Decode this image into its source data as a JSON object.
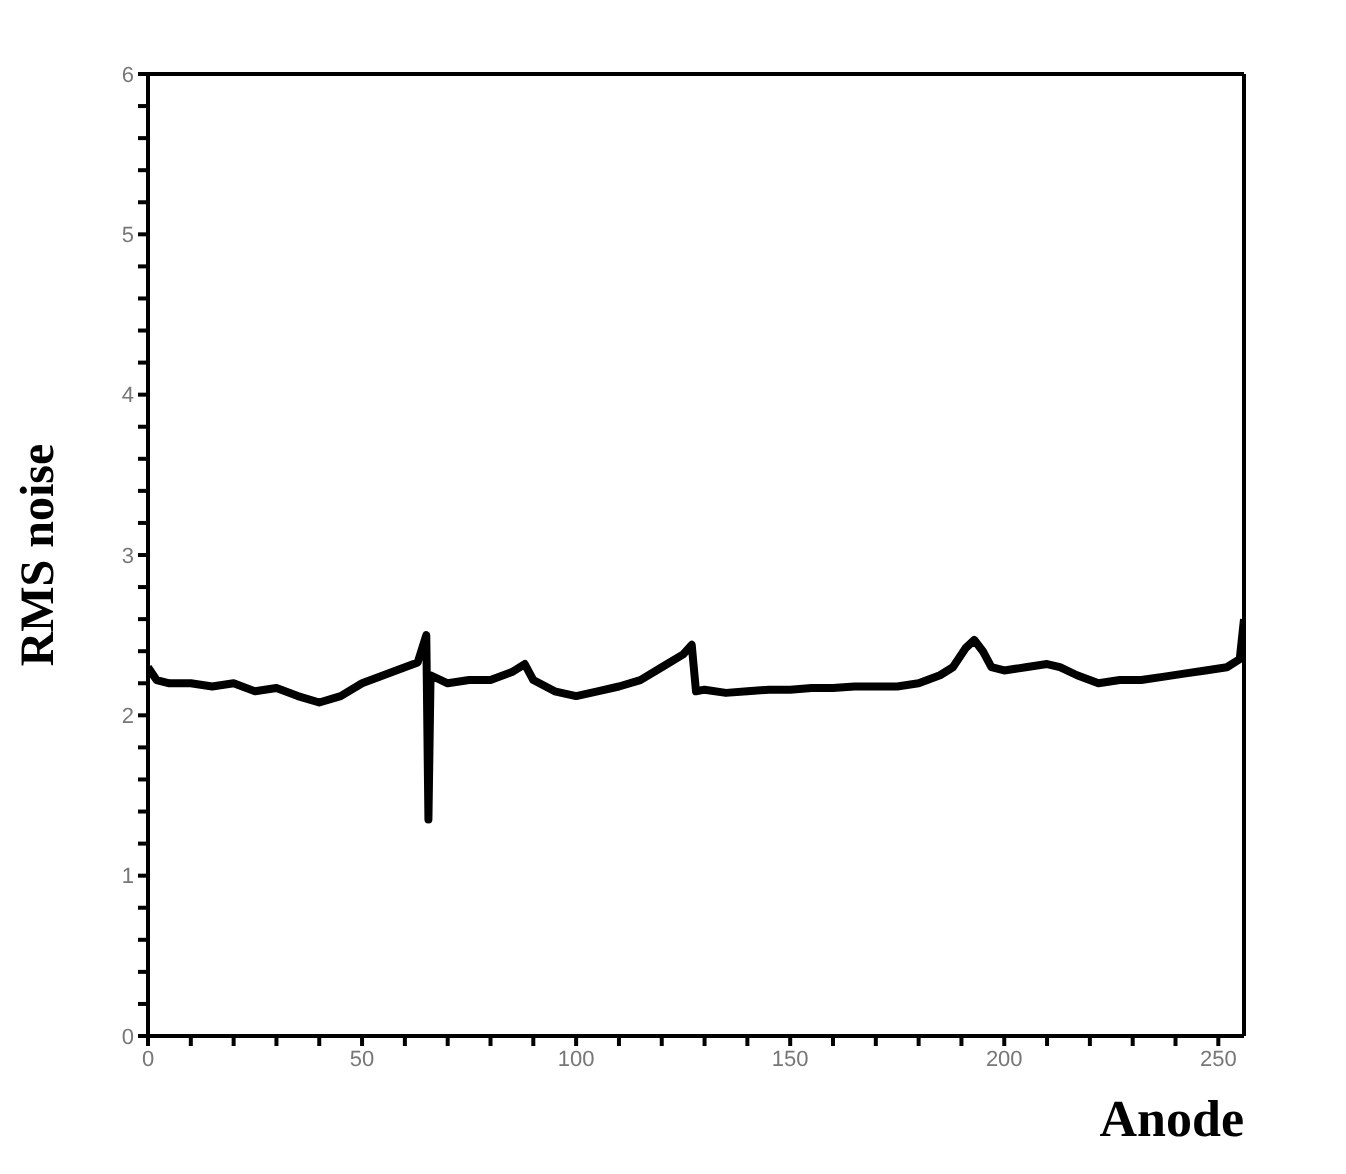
{
  "chart_data": {
    "type": "line",
    "xlabel": "Anode",
    "ylabel": "RMS noise",
    "x": [
      0,
      2,
      5,
      10,
      15,
      20,
      25,
      30,
      35,
      40,
      45,
      50,
      55,
      60,
      63,
      65,
      65.5,
      66,
      70,
      75,
      80,
      85,
      88,
      90,
      95,
      100,
      105,
      110,
      115,
      120,
      125,
      127,
      128,
      130,
      135,
      140,
      145,
      150,
      155,
      160,
      165,
      170,
      175,
      180,
      185,
      188,
      191,
      193,
      195,
      197,
      200,
      205,
      210,
      213,
      217,
      222,
      227,
      232,
      237,
      242,
      247,
      252,
      255,
      256
    ],
    "series": [
      {
        "color": "#000000",
        "values": [
          2.3,
          2.22,
          2.2,
          2.2,
          2.18,
          2.2,
          2.15,
          2.17,
          2.12,
          2.08,
          2.12,
          2.2,
          2.25,
          2.3,
          2.33,
          2.5,
          1.35,
          2.25,
          2.2,
          2.22,
          2.22,
          2.27,
          2.32,
          2.22,
          2.15,
          2.12,
          2.15,
          2.18,
          2.22,
          2.3,
          2.38,
          2.44,
          2.15,
          2.16,
          2.14,
          2.15,
          2.16,
          2.16,
          2.17,
          2.17,
          2.18,
          2.18,
          2.18,
          2.2,
          2.25,
          2.3,
          2.42,
          2.47,
          2.4,
          2.3,
          2.28,
          2.3,
          2.32,
          2.3,
          2.25,
          2.2,
          2.22,
          2.22,
          2.24,
          2.26,
          2.28,
          2.3,
          2.35,
          2.6
        ]
      }
    ],
    "xlim": [
      0,
      256
    ],
    "xticks": [
      0,
      {
        "value": 10,
        "label": null
      },
      {
        "value": 20,
        "label": null
      },
      {
        "value": 30,
        "label": null
      },
      {
        "value": 40,
        "label": null
      },
      50,
      {
        "value": 60,
        "label": null
      },
      {
        "value": 70,
        "label": null
      },
      {
        "value": 80,
        "label": null
      },
      {
        "value": 90,
        "label": null
      },
      100,
      {
        "value": 110,
        "label": null
      },
      {
        "value": 120,
        "label": null
      },
      {
        "value": 130,
        "label": null
      },
      {
        "value": 140,
        "label": null
      },
      150,
      {
        "value": 160,
        "label": null
      },
      {
        "value": 170,
        "label": null
      },
      {
        "value": 180,
        "label": null
      },
      {
        "value": 190,
        "label": null
      },
      200,
      {
        "value": 210,
        "label": null
      },
      {
        "value": 220,
        "label": null
      },
      {
        "value": 230,
        "label": null
      },
      {
        "value": 240,
        "label": null
      },
      250
    ],
    "ylim": [
      0,
      6
    ],
    "yticks": [
      0,
      {
        "value": 0.2,
        "label": null
      },
      {
        "value": 0.4,
        "label": null
      },
      {
        "value": 0.6,
        "label": null
      },
      {
        "value": 0.8,
        "label": null
      },
      1,
      {
        "value": 1.2,
        "label": null
      },
      {
        "value": 1.4,
        "label": null
      },
      {
        "value": 1.6,
        "label": null
      },
      {
        "value": 1.8,
        "label": null
      },
      2,
      {
        "value": 2.2,
        "label": null
      },
      {
        "value": 2.4,
        "label": null
      },
      {
        "value": 2.6,
        "label": null
      },
      {
        "value": 2.8,
        "label": null
      },
      3,
      {
        "value": 3.2,
        "label": null
      },
      {
        "value": 3.4,
        "label": null
      },
      {
        "value": 3.6,
        "label": null
      },
      {
        "value": 3.8,
        "label": null
      },
      4,
      {
        "value": 4.2,
        "label": null
      },
      {
        "value": 4.4,
        "label": null
      },
      {
        "value": 4.6,
        "label": null
      },
      {
        "value": 4.8,
        "label": null
      },
      5,
      {
        "value": 5.2,
        "label": null
      },
      {
        "value": 5.4,
        "label": null
      },
      {
        "value": 5.6,
        "label": null
      },
      {
        "value": 5.8,
        "label": null
      },
      6
    ],
    "grid": false,
    "legend": false,
    "marker": "none",
    "line_style": "solid"
  }
}
